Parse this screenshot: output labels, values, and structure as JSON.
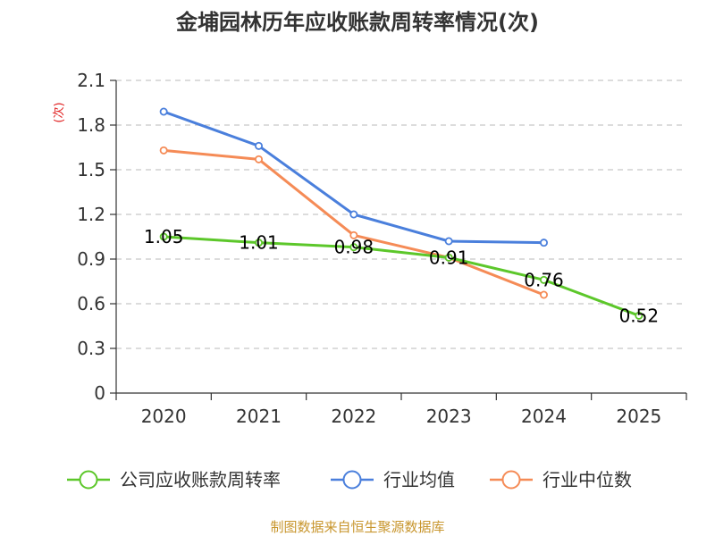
{
  "chart_data": {
    "type": "line",
    "title": "金埔园林历年应收账款周转率情况(次)",
    "ylabel": "(次)",
    "xlabel": "",
    "categories": [
      "2020",
      "2021",
      "2022",
      "2023",
      "2024",
      "2025"
    ],
    "yticks": [
      "0",
      "0.3",
      "0.6",
      "0.9",
      "1.2",
      "1.5",
      "1.8",
      "2.1"
    ],
    "ylim": [
      0,
      2.1
    ],
    "grid": true,
    "legend_position": "bottom",
    "series": [
      {
        "name": "公司应收账款周转率",
        "color": "#5cc72a",
        "values": [
          1.05,
          1.01,
          0.98,
          0.91,
          0.76,
          0.52
        ],
        "labels": [
          "1.05",
          "1.01",
          "0.98",
          "0.91",
          "0.76",
          "0.52"
        ]
      },
      {
        "name": "行业均值",
        "color": "#4a7fdc",
        "values": [
          1.89,
          1.66,
          1.2,
          1.02,
          1.01,
          null
        ],
        "labels": null
      },
      {
        "name": "行业中位数",
        "color": "#f58b56",
        "values": [
          1.63,
          1.57,
          1.06,
          0.91,
          0.66,
          null
        ],
        "labels": null
      }
    ],
    "source": "制图数据来自恒生聚源数据库"
  }
}
